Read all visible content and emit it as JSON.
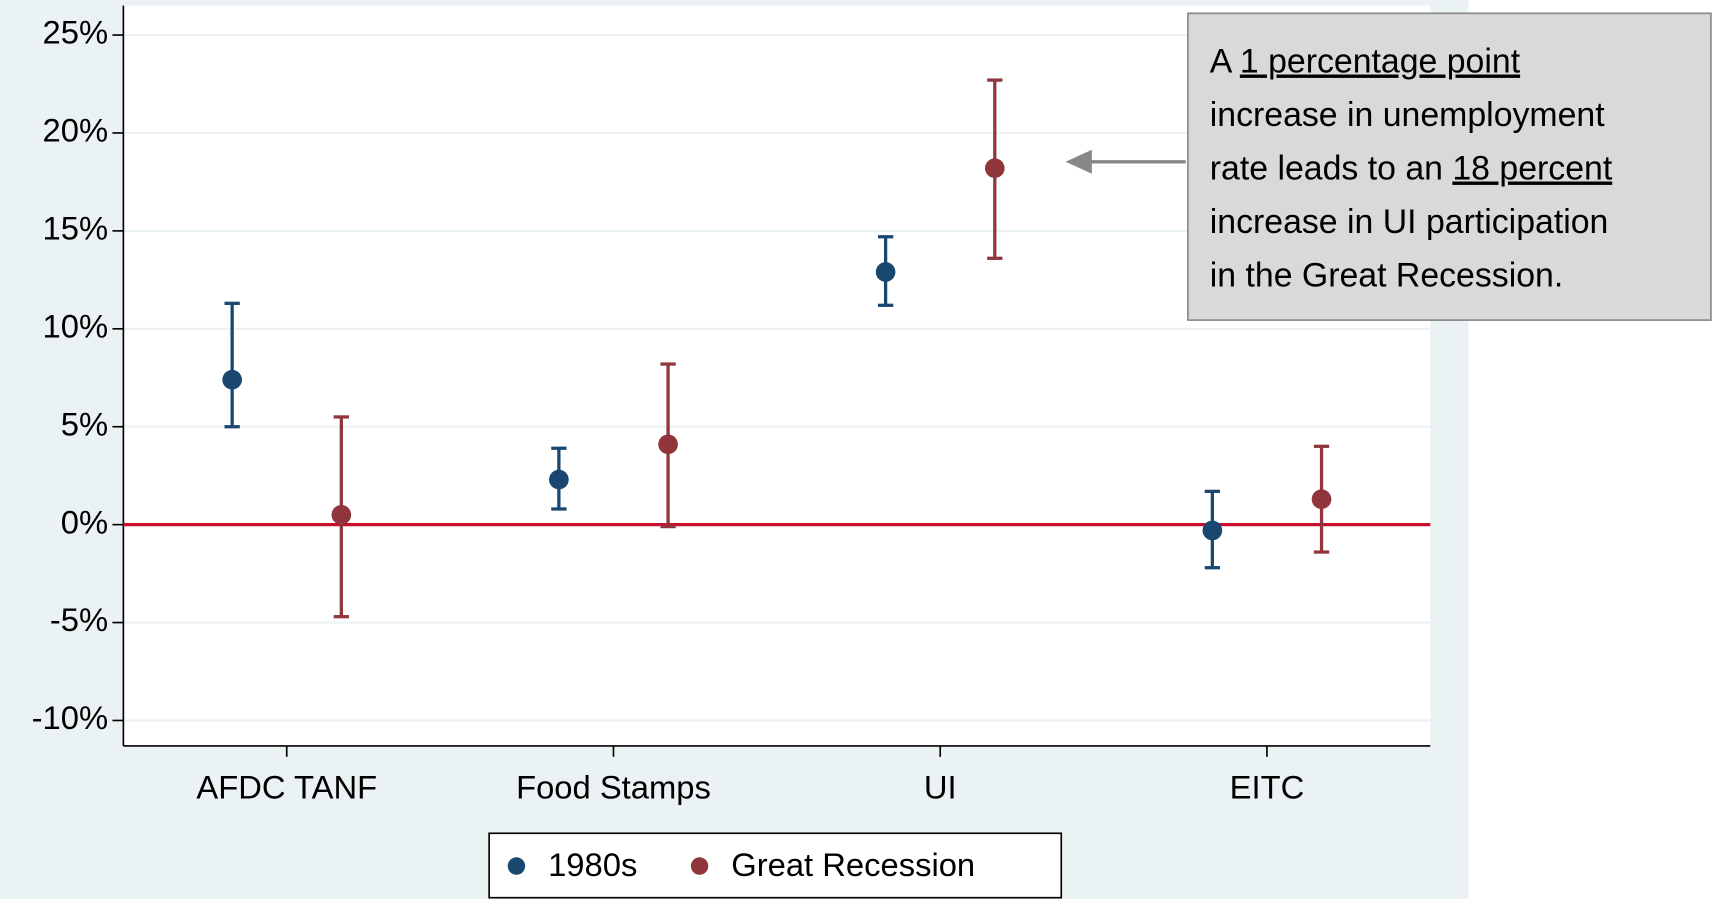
{
  "chart_data": {
    "type": "errorbar",
    "categories": [
      "AFDC TANF",
      "Food Stamps",
      "UI",
      "EITC"
    ],
    "series": [
      {
        "name": "1980s",
        "color": "#1a476f",
        "values": [
          7.4,
          2.3,
          12.9,
          -0.3
        ],
        "low": [
          5.0,
          0.8,
          11.2,
          -2.2
        ],
        "high": [
          11.3,
          3.9,
          14.7,
          1.7
        ]
      },
      {
        "name": "Great Recession",
        "color": "#90353b",
        "values": [
          0.5,
          4.1,
          18.2,
          1.3
        ],
        "low": [
          -4.7,
          -0.1,
          13.6,
          -1.4
        ],
        "high": [
          5.5,
          8.2,
          22.7,
          4.0
        ]
      }
    ],
    "ylim": [
      -11.3,
      26.5
    ],
    "yticks": [
      {
        "value": -10,
        "label": "-10%"
      },
      {
        "value": -5,
        "label": "-5%"
      },
      {
        "value": 0,
        "label": "0%"
      },
      {
        "value": 5,
        "label": "5%"
      },
      {
        "value": 10,
        "label": "10%"
      },
      {
        "value": 15,
        "label": "15%"
      },
      {
        "value": 20,
        "label": "20%"
      },
      {
        "value": 25,
        "label": "25%"
      }
    ],
    "grid": true,
    "reference_line": {
      "value": 0,
      "color": "#c8102e"
    },
    "annotation": {
      "lines": [
        [
          {
            "text": "A "
          },
          {
            "text": "1 percentage point",
            "underline": true
          }
        ],
        [
          {
            "text": "increase in unemployment"
          }
        ],
        [
          {
            "text": "rate leads to an "
          },
          {
            "text": "18 percent",
            "underline": true
          }
        ],
        [
          {
            "text": "increase in UI participation"
          }
        ],
        [
          {
            "text": "in the Great Recession."
          }
        ]
      ]
    }
  }
}
